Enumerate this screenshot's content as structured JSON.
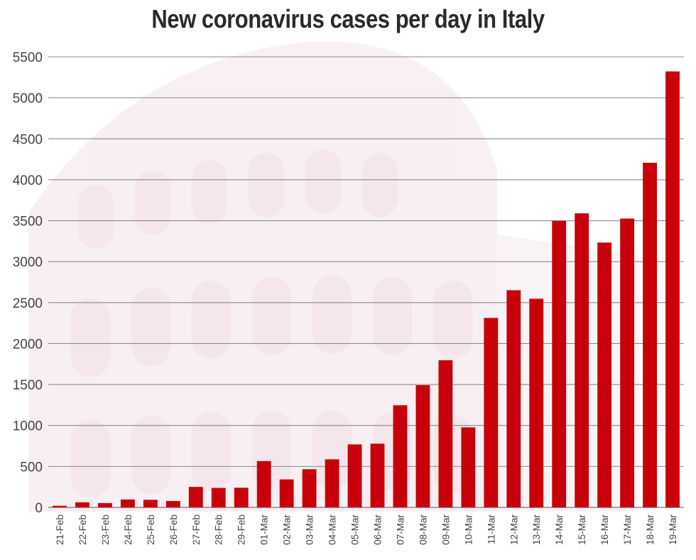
{
  "chart_data": {
    "type": "bar",
    "title": "New coronavirus cases per day in Italy",
    "xlabel": "",
    "ylabel": "",
    "categories": [
      "21-Feb",
      "22-Feb",
      "23-Feb",
      "24-Feb",
      "25-Feb",
      "26-Feb",
      "27-Feb",
      "28-Feb",
      "29-Feb",
      "01-Mar",
      "02-Mar",
      "03-Mar",
      "04-Mar",
      "05-Mar",
      "06-Mar",
      "07-Mar",
      "08-Mar",
      "09-Mar",
      "10-Mar",
      "11-Mar",
      "12-Mar",
      "13-Mar",
      "14-Mar",
      "15-Mar",
      "16-Mar",
      "17-Mar",
      "18-Mar",
      "19-Mar"
    ],
    "values": [
      20,
      62,
      53,
      97,
      93,
      78,
      250,
      238,
      240,
      566,
      342,
      466,
      587,
      769,
      778,
      1247,
      1492,
      1797,
      977,
      2313,
      2651,
      2547,
      3497,
      3590,
      3233,
      3526,
      4207,
      5322
    ],
    "yticks": [
      0,
      500,
      1000,
      1500,
      2000,
      2500,
      3000,
      3500,
      4000,
      4500,
      5000,
      5500
    ],
    "ylim": [
      0,
      5500
    ],
    "grid": true,
    "legend": "none",
    "colors": {
      "bar": "#c8000a",
      "grid": "#8a8a8a",
      "title": "#2a2a2a",
      "background_tint": "#f6e8ec"
    }
  }
}
